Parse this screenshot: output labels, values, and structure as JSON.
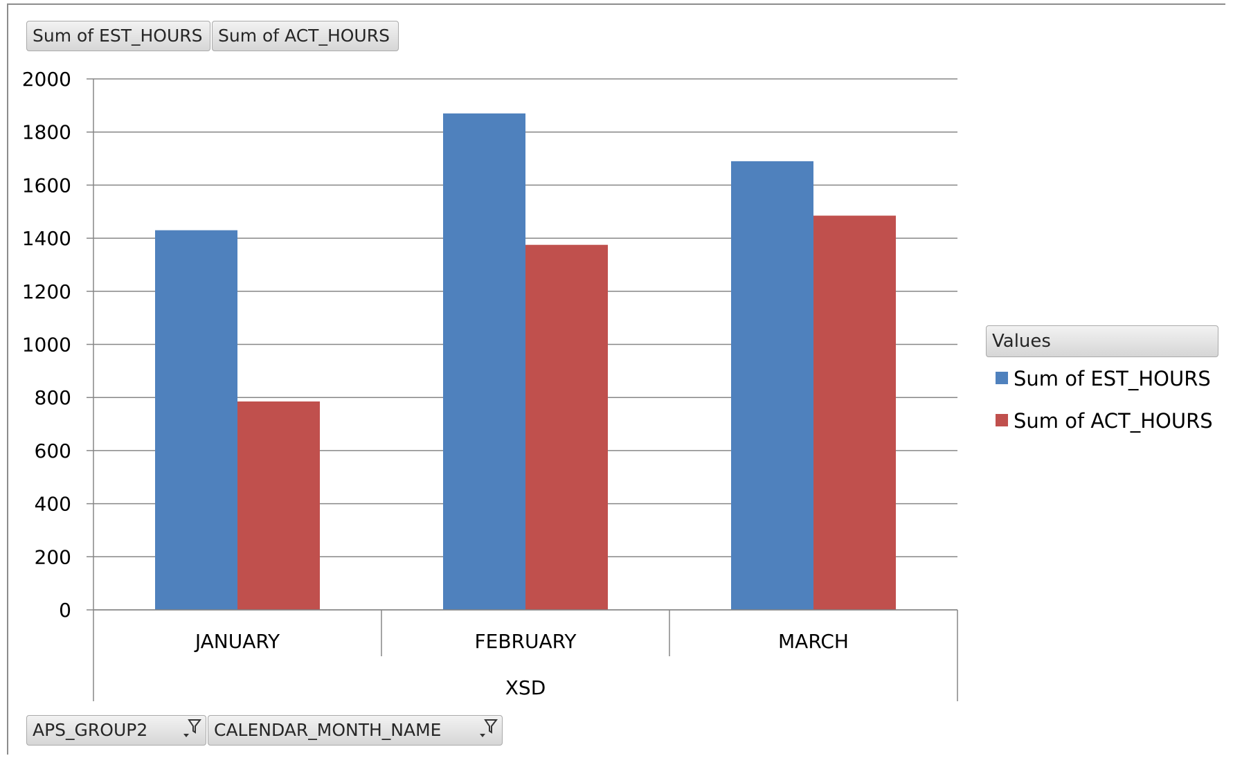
{
  "value_field_buttons": [
    "Sum of EST_HOURS",
    "Sum of ACT_HOURS"
  ],
  "axis_field_buttons": [
    "APS_GROUP2",
    "CALENDAR_MONTH_NAME"
  ],
  "legend_title": "Values",
  "colors": {
    "est": "#4F81BD",
    "act": "#C0504D",
    "grid": "#868686"
  },
  "icons": {
    "filter": "filter-icon"
  },
  "chart_data": {
    "type": "bar",
    "title": "",
    "xlabel": "XSD",
    "ylabel": "",
    "categories": [
      "JANUARY",
      "FEBRUARY",
      "MARCH"
    ],
    "series": [
      {
        "name": "Sum of EST_HOURS",
        "values": [
          1430,
          1870,
          1690
        ],
        "color": "#4F81BD"
      },
      {
        "name": "Sum of ACT_HOURS",
        "values": [
          785,
          1375,
          1485
        ],
        "color": "#C0504D"
      }
    ],
    "ylim": [
      0,
      2000
    ],
    "yticks": [
      0,
      200,
      400,
      600,
      800,
      1000,
      1200,
      1400,
      1600,
      1800,
      2000
    ],
    "grid": true,
    "legend_position": "right"
  }
}
